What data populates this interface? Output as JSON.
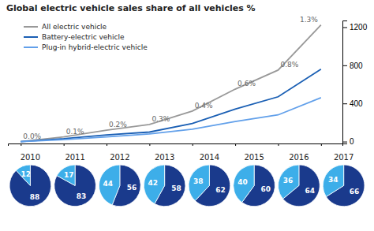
{
  "chart_data": [
    {
      "type": "line",
      "title": "Global electric vehicle sales share of all vehicles %",
      "x": [
        2010,
        2011,
        2012,
        2013,
        2014,
        2015,
        2016,
        2017
      ],
      "series": [
        {
          "name": "All electric vehicle",
          "color": "#999999",
          "values": [
            0,
            50,
            120,
            180,
            320,
            550,
            750,
            1223
          ]
        },
        {
          "name": "Battery-electric vehicle",
          "color": "#1a5fb4",
          "values": [
            0,
            30,
            70,
            100,
            190,
            340,
            470,
            760
          ]
        },
        {
          "name": "Plug-in hybrid-electric vehicle",
          "color": "#62a0ea",
          "values": [
            0,
            20,
            50,
            80,
            130,
            210,
            280,
            460
          ]
        }
      ],
      "annotations": [
        {
          "x": 2010,
          "y": 0,
          "text": "0.0%"
        },
        {
          "x": 2011,
          "y": 50,
          "text": "0.1%"
        },
        {
          "x": 2012,
          "y": 120,
          "text": "0.2%"
        },
        {
          "x": 2013,
          "y": 180,
          "text": "0.3%"
        },
        {
          "x": 2014,
          "y": 320,
          "text": "0.4%"
        },
        {
          "x": 2015,
          "y": 550,
          "text": "0.6%"
        },
        {
          "x": 2016,
          "y": 750,
          "text": "0.8%"
        },
        {
          "x": 2017,
          "y": 1223,
          "text": "1.3%"
        }
      ],
      "xlim": [
        2009.7,
        2017.5
      ],
      "xticks": [
        2010,
        2011,
        2012,
        2013,
        2014,
        2015,
        2016,
        2017
      ],
      "ylim": [
        -20,
        1270
      ],
      "yticks": [
        0,
        400,
        800,
        1200
      ],
      "tick_labels": "y",
      "legend": "top-left",
      "grid": false
    },
    {
      "type": "pie",
      "title": "2010",
      "values": [
        88,
        12
      ],
      "colors": [
        "#1a3a8c",
        "#3daee9"
      ],
      "data_labels": true
    },
    {
      "type": "pie",
      "title": "2011",
      "values": [
        83,
        17
      ],
      "colors": [
        "#1a3a8c",
        "#3daee9"
      ],
      "data_labels": true
    },
    {
      "type": "pie",
      "title": "2012",
      "values": [
        56,
        44
      ],
      "colors": [
        "#1a3a8c",
        "#3daee9"
      ],
      "data_labels": true
    },
    {
      "type": "pie",
      "title": "2013",
      "values": [
        58,
        42
      ],
      "colors": [
        "#1a3a8c",
        "#3daee9"
      ],
      "data_labels": true
    },
    {
      "type": "pie",
      "title": "2014",
      "values": [
        62,
        38
      ],
      "colors": [
        "#1a3a8c",
        "#3daee9"
      ],
      "data_labels": true
    },
    {
      "type": "pie",
      "title": "2015",
      "values": [
        60,
        40
      ],
      "colors": [
        "#1a3a8c",
        "#3daee9"
      ],
      "data_labels": true
    },
    {
      "type": "pie",
      "title": "2016",
      "values": [
        64,
        36
      ],
      "colors": [
        "#1a3a8c",
        "#3daee9"
      ],
      "data_labels": true
    },
    {
      "type": "pie",
      "title": "2017",
      "values": [
        66,
        34
      ],
      "colors": [
        "#1a3a8c",
        "#3daee9"
      ],
      "data_labels": true
    }
  ]
}
